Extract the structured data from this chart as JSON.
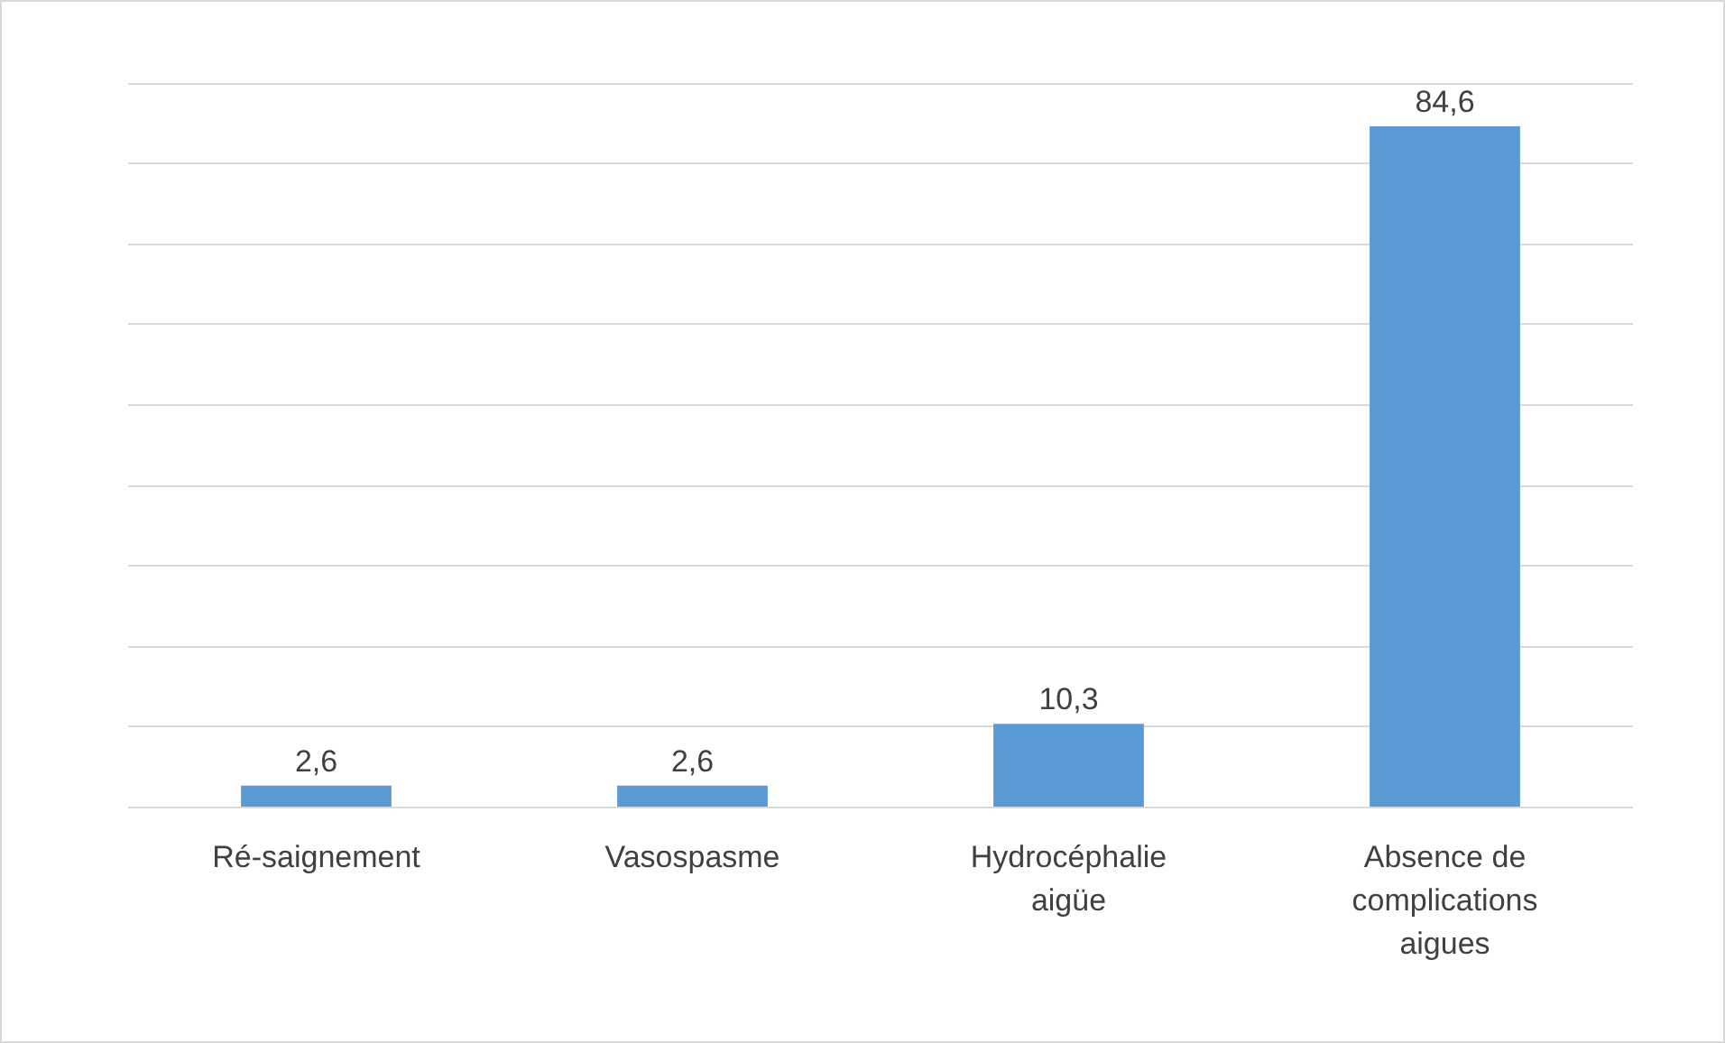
{
  "chart_data": {
    "type": "bar",
    "categories": [
      "Ré-saignement",
      "Vasospasme",
      "Hydrocéphalie\naigüe",
      "Absence de\ncomplications\naigues"
    ],
    "values": [
      2.6,
      2.6,
      10.3,
      84.6
    ],
    "color": "#5b9bd5",
    "value_labels": [
      "2,6",
      "2,6",
      "10,3",
      "84,6"
    ],
    "ylim": [
      0,
      90
    ],
    "yticks": [
      {
        "value": 0,
        "label": null
      },
      {
        "value": 10,
        "label": null
      },
      {
        "value": 20,
        "label": null
      },
      {
        "value": 30,
        "label": null
      },
      {
        "value": 40,
        "label": null
      },
      {
        "value": 50,
        "label": null
      },
      {
        "value": 60,
        "label": null
      },
      {
        "value": 70,
        "label": null
      },
      {
        "value": 80,
        "label": null
      },
      {
        "value": 90,
        "label": null
      }
    ],
    "grid": "y",
    "tick_labels": "x"
  }
}
